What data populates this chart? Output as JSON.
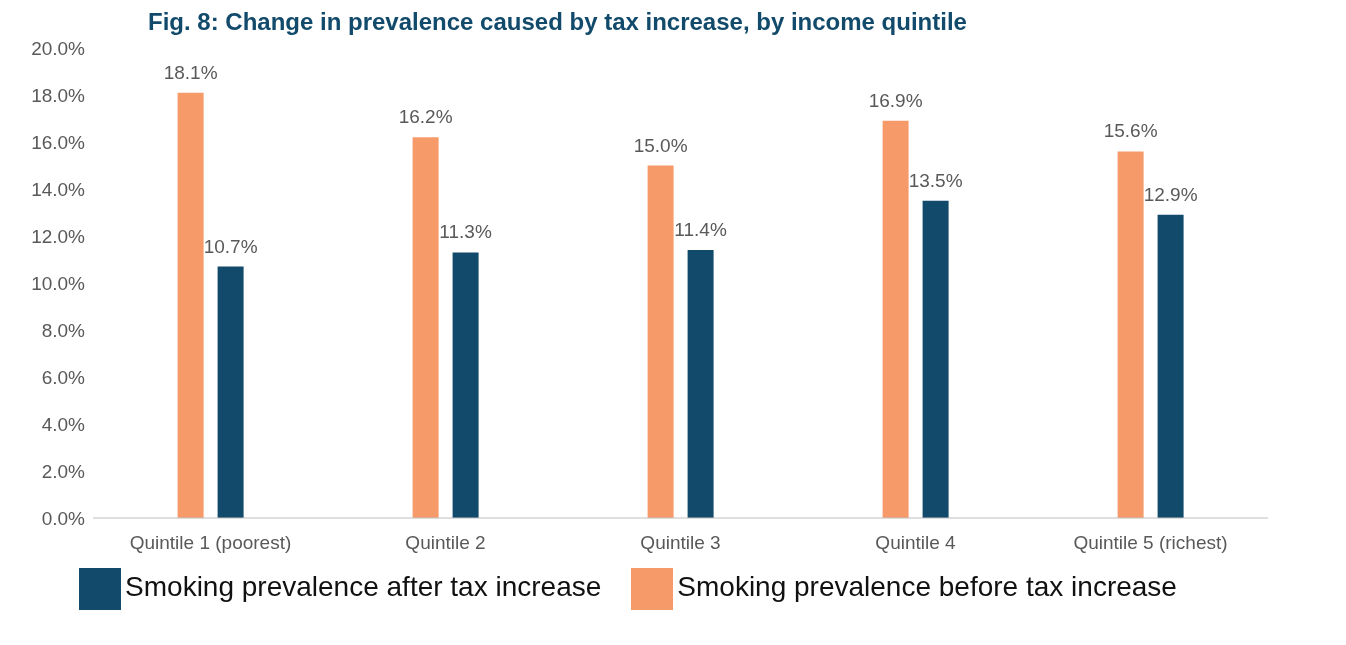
{
  "chart_data": {
    "type": "bar",
    "title": "Fig. 8: Change in prevalence caused by tax increase, by income quintile",
    "categories": [
      "Quintile 1 (poorest)",
      "Quintile 2",
      "Quintile 3",
      "Quintile 4",
      "Quintile 5 (richest)"
    ],
    "series": [
      {
        "name": "Smoking prevalence before tax increase",
        "color": "#f79a6a",
        "values": [
          18.1,
          16.2,
          15.0,
          16.9,
          15.6
        ],
        "value_labels": [
          "18.1%",
          "16.2%",
          "15.0%",
          "16.9%",
          "15.6%"
        ]
      },
      {
        "name": "Smoking prevalence after tax increase",
        "color": "#124a6b",
        "values": [
          10.7,
          11.3,
          11.4,
          13.5,
          12.9
        ],
        "value_labels": [
          "10.7%",
          "11.3%",
          "11.4%",
          "13.5%",
          "12.9%"
        ]
      }
    ],
    "ylim": [
      0,
      20
    ],
    "yticks": [
      {
        "value": 0,
        "label": "0.0%"
      },
      {
        "value": 2,
        "label": "2.0%"
      },
      {
        "value": 4,
        "label": "4.0%"
      },
      {
        "value": 6,
        "label": "6.0%"
      },
      {
        "value": 8,
        "label": "8.0%"
      },
      {
        "value": 10,
        "label": "10.0%"
      },
      {
        "value": 12,
        "label": "12.0%"
      },
      {
        "value": 14,
        "label": "14.0%"
      },
      {
        "value": 16,
        "label": "16.0%"
      },
      {
        "value": 18,
        "label": "18.0%"
      },
      {
        "value": 20,
        "label": "20.0%"
      }
    ],
    "legend": "bottom"
  }
}
